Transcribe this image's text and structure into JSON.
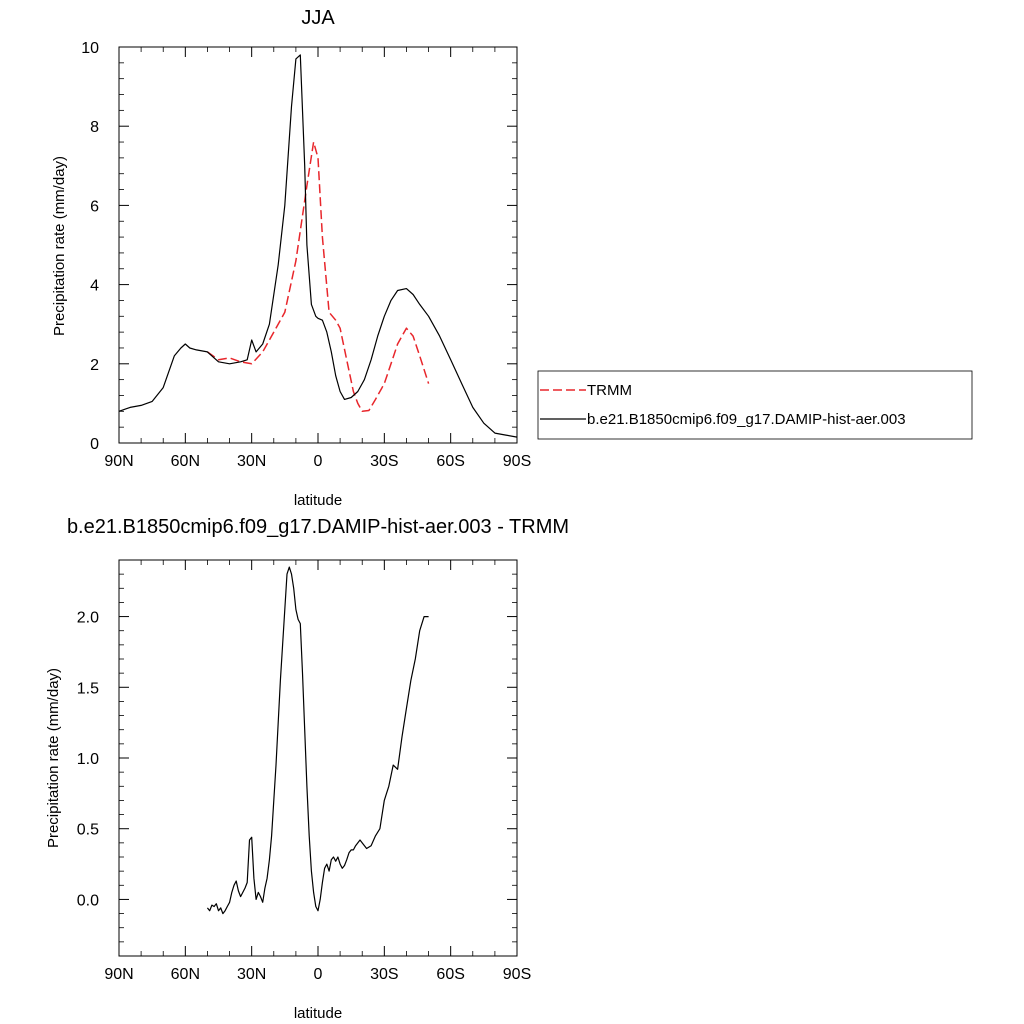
{
  "chart_data": [
    {
      "type": "line",
      "title": "JJA",
      "xlabel": "latitude",
      "ylabel": "Precipitation rate (mm/day)",
      "xlim": [
        90,
        -90
      ],
      "ylim": [
        0,
        10
      ],
      "xticks": [
        90,
        60,
        30,
        0,
        -30,
        -60,
        -90
      ],
      "xtick_labels": [
        "90N",
        "60N",
        "30N",
        "0",
        "30S",
        "60S",
        "90S"
      ],
      "yticks": [
        0,
        2,
        4,
        6,
        8,
        10
      ],
      "ytick_labels": [
        "0",
        "2",
        "4",
        "6",
        "8",
        "10"
      ],
      "grid": false,
      "legend": {
        "placement": "right",
        "entries": [
          "TRMM",
          "b.e21.B1850cmip6.f09_g17.DAMIP-hist-aer.003"
        ]
      },
      "series": [
        {
          "name": "TRMM",
          "color": "#e8262b",
          "dash": true,
          "x": [
            50,
            45,
            40,
            35,
            30,
            25,
            20,
            15,
            10,
            5,
            2,
            0,
            -2,
            -5,
            -8,
            -10,
            -13,
            -16,
            -18,
            -20,
            -23,
            -26,
            -30,
            -33,
            -36,
            -40,
            -43,
            -46,
            -50
          ],
          "y": [
            2.3,
            2.1,
            2.15,
            2.05,
            2.0,
            2.3,
            2.8,
            3.3,
            4.6,
            6.5,
            7.6,
            7.2,
            5.2,
            3.3,
            3.1,
            2.9,
            2.1,
            1.3,
            1.0,
            0.8,
            0.82,
            1.1,
            1.5,
            2.0,
            2.5,
            2.9,
            2.7,
            2.2,
            1.5
          ]
        },
        {
          "name": "b.e21.B1850cmip6.f09_g17.DAMIP-hist-aer.003",
          "color": "#000000",
          "dash": false,
          "x": [
            90,
            85,
            80,
            75,
            70,
            65,
            62,
            60,
            58,
            55,
            50,
            45,
            40,
            35,
            32,
            30,
            28,
            25,
            22,
            18,
            15,
            12,
            10,
            8,
            6,
            5,
            3,
            1,
            0,
            -2,
            -4,
            -6,
            -8,
            -10,
            -12,
            -15,
            -18,
            -21,
            -24,
            -27,
            -30,
            -33,
            -36,
            -40,
            -43,
            -46,
            -50,
            -55,
            -60,
            -65,
            -70,
            -75,
            -80,
            -85,
            -90
          ],
          "y": [
            0.8,
            0.9,
            0.95,
            1.05,
            1.4,
            2.2,
            2.4,
            2.5,
            2.4,
            2.35,
            2.3,
            2.05,
            2.0,
            2.05,
            2.1,
            2.6,
            2.3,
            2.5,
            3.0,
            4.5,
            6.0,
            8.5,
            9.7,
            9.8,
            7.0,
            5.0,
            3.5,
            3.2,
            3.15,
            3.1,
            2.8,
            2.3,
            1.7,
            1.3,
            1.1,
            1.15,
            1.3,
            1.6,
            2.1,
            2.7,
            3.2,
            3.6,
            3.85,
            3.9,
            3.75,
            3.5,
            3.2,
            2.7,
            2.1,
            1.5,
            0.9,
            0.5,
            0.25,
            0.2,
            0.15
          ]
        }
      ]
    },
    {
      "type": "line",
      "title": "b.e21.B1850cmip6.f09_g17.DAMIP-hist-aer.003 - TRMM",
      "xlabel": "latitude",
      "ylabel": "Precipitation rate (mm/day)",
      "xlim": [
        90,
        -90
      ],
      "ylim": [
        -0.4,
        2.4
      ],
      "xticks": [
        90,
        60,
        30,
        0,
        -30,
        -60,
        -90
      ],
      "xtick_labels": [
        "90N",
        "60N",
        "30N",
        "0",
        "30S",
        "60S",
        "90S"
      ],
      "yticks": [
        0.0,
        0.5,
        1.0,
        1.5,
        2.0
      ],
      "ytick_labels": [
        "0.0",
        "0.5",
        "1.0",
        "1.5",
        "2.0"
      ],
      "grid": false,
      "series": [
        {
          "color": "#000000",
          "dash": false,
          "x": [
            50,
            49,
            48,
            47,
            46,
            45,
            44,
            43,
            42,
            41,
            40,
            39,
            38,
            37,
            36,
            35,
            34,
            33,
            32,
            31,
            30,
            29,
            28,
            27,
            26,
            25,
            24,
            23,
            22,
            21,
            20,
            19,
            18,
            17,
            16,
            15,
            14,
            13,
            12,
            11,
            10,
            9,
            8,
            7,
            6,
            5,
            4,
            3,
            2,
            1,
            0,
            -1,
            -2,
            -3,
            -4,
            -5,
            -6,
            -7,
            -8,
            -9,
            -10,
            -11,
            -12,
            -13,
            -14,
            -15,
            -16,
            -17,
            -18,
            -19,
            -20,
            -22,
            -24,
            -26,
            -28,
            -30,
            -31,
            -32,
            -34,
            -36,
            -38,
            -40,
            -42,
            -44,
            -46,
            -48,
            -50
          ],
          "y": [
            -0.06,
            -0.08,
            -0.04,
            -0.05,
            -0.03,
            -0.08,
            -0.06,
            -0.1,
            -0.08,
            -0.05,
            -0.02,
            0.05,
            0.1,
            0.13,
            0.06,
            0.02,
            0.05,
            0.08,
            0.12,
            0.42,
            0.44,
            0.15,
            0.0,
            0.05,
            0.02,
            -0.02,
            0.08,
            0.15,
            0.28,
            0.45,
            0.7,
            0.95,
            1.25,
            1.55,
            1.8,
            2.05,
            2.3,
            2.35,
            2.3,
            2.2,
            2.05,
            1.98,
            1.95,
            1.6,
            1.2,
            0.8,
            0.45,
            0.2,
            0.05,
            -0.05,
            -0.08,
            0.0,
            0.12,
            0.22,
            0.25,
            0.2,
            0.28,
            0.3,
            0.27,
            0.3,
            0.25,
            0.22,
            0.24,
            0.28,
            0.33,
            0.35,
            0.35,
            0.38,
            0.4,
            0.42,
            0.4,
            0.36,
            0.38,
            0.45,
            0.5,
            0.7,
            0.75,
            0.8,
            0.95,
            0.92,
            1.15,
            1.35,
            1.55,
            1.7,
            1.9,
            2.0,
            2.0
          ]
        }
      ]
    }
  ]
}
